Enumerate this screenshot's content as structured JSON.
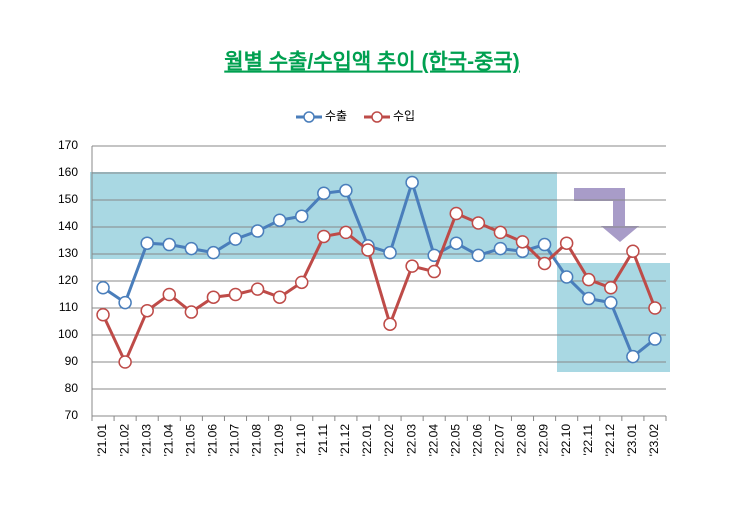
{
  "chart_data": {
    "type": "line",
    "title": "월별 수출/수입액 추이 (한국-중국)",
    "categories": [
      "'21.01",
      "'21.02",
      "'21.03",
      "'21.04",
      "'21.05",
      "'21.06",
      "'21.07",
      "'21.08",
      "'21.09",
      "'21.10",
      "'21.11",
      "'21.12",
      "'22.01",
      "'22.02",
      "'22.03",
      "'22.04",
      "'22.05",
      "'22.06",
      "'22.07",
      "'22.08",
      "'22.09",
      "'22.10",
      "'22.11",
      "'22.12",
      "'23.01",
      "'23.02"
    ],
    "series": [
      {
        "name": "수출",
        "color": "#4a7ebb",
        "values": [
          117.5,
          112,
          134,
          133.5,
          132,
          130.5,
          135.5,
          138.5,
          142.5,
          144,
          152.5,
          153.5,
          133,
          130.5,
          156.5,
          129.5,
          134,
          129.5,
          132,
          131,
          133.5,
          121.5,
          113.5,
          112,
          92,
          98.5
        ]
      },
      {
        "name": "수입",
        "color": "#be4b48",
        "values": [
          107.5,
          90,
          109,
          115,
          108.5,
          114,
          115,
          117,
          114,
          119.5,
          136.5,
          138,
          131.5,
          104,
          125.5,
          123.5,
          145,
          141.5,
          138,
          134.5,
          126.5,
          134,
          120.5,
          117.5,
          131,
          110
        ]
      }
    ],
    "ylim": [
      70,
      170
    ],
    "yticks": [
      70,
      80,
      90,
      100,
      110,
      120,
      130,
      140,
      150,
      160,
      170
    ],
    "grid": true,
    "legend": "top"
  }
}
